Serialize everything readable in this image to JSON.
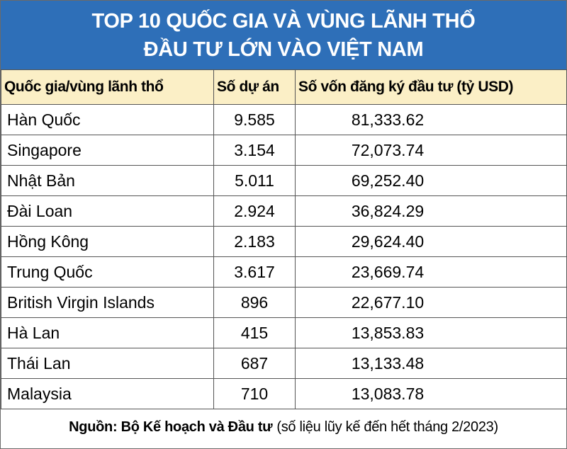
{
  "title": {
    "lines": [
      "TOP 10 QUỐC GIA VÀ VÙNG LÃNH THỔ",
      "ĐẦU TƯ LỚN VÀO VIỆT NAM"
    ]
  },
  "table": {
    "header": [
      "Quốc gia/vùng lãnh thổ",
      "Số dự án",
      "Số vốn đăng ký đầu tư (tỷ USD)"
    ],
    "rows": [
      [
        "Hàn Quốc",
        "9.585",
        "81,333.62"
      ],
      [
        "Singapore",
        "3.154",
        "72,073.74"
      ],
      [
        "Nhật Bản",
        "5.011",
        "69,252.40"
      ],
      [
        "Đài Loan",
        "2.924",
        "36,824.29"
      ],
      [
        "Hồng Kông",
        "2.183",
        "29,624.40"
      ],
      [
        "Trung Quốc",
        "3.617",
        "23,669.74"
      ],
      [
        "British Virgin Islands",
        "896",
        "22,677.10"
      ],
      [
        "Hà Lan",
        "415",
        "13,853.83"
      ],
      [
        "Thái Lan",
        "687",
        "13,133.48"
      ],
      [
        "Malaysia",
        "710",
        "13,083.78"
      ]
    ]
  },
  "source": {
    "label": "Nguồn: Bộ Kế hoạch và Đầu tư",
    "note": "(số liệu lũy kế đến hết tháng 2/2023)"
  }
}
